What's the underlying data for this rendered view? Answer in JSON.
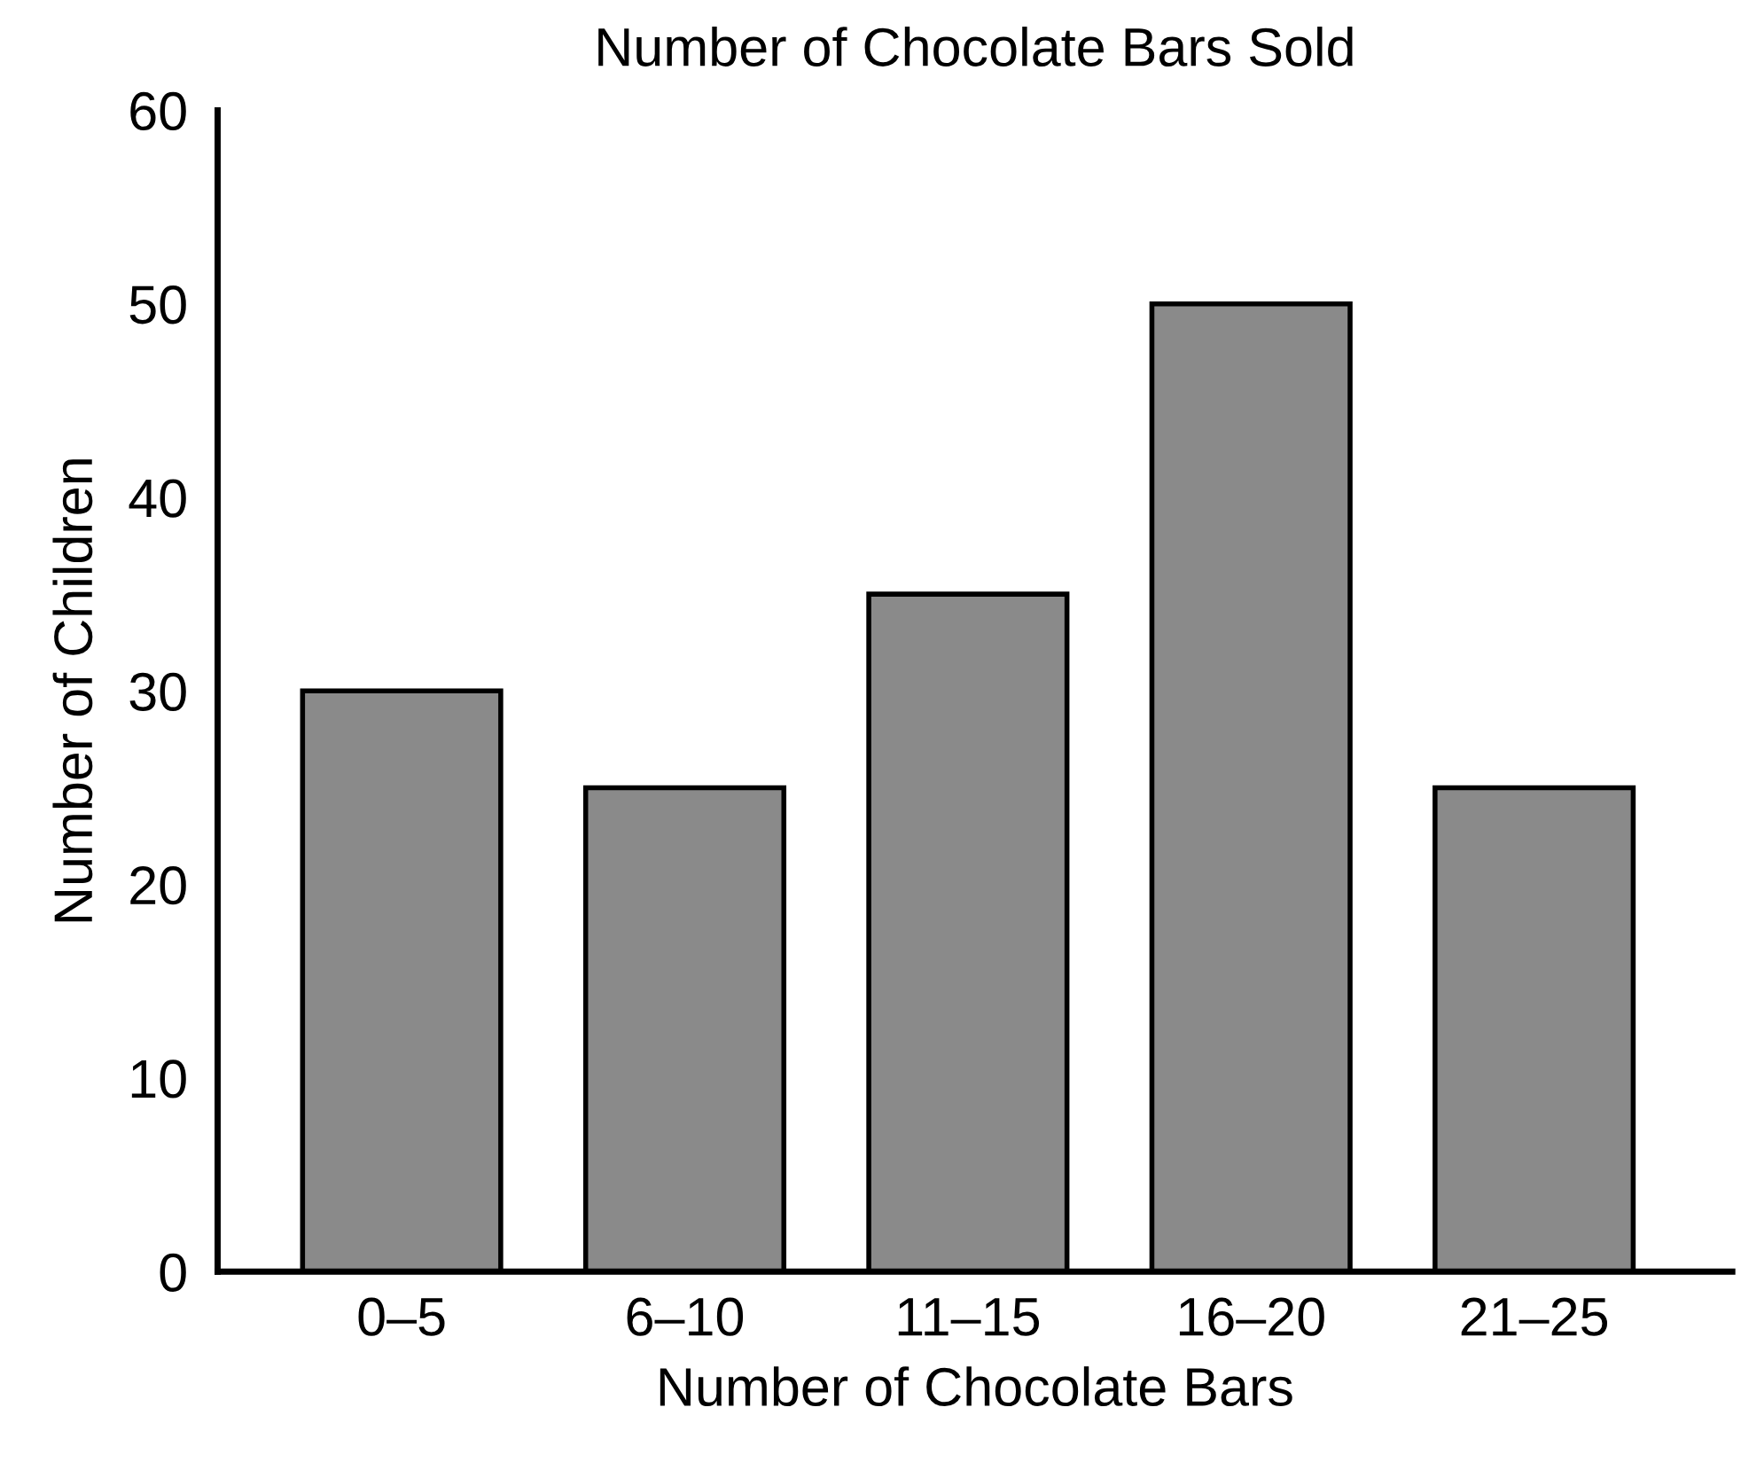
{
  "chart_data": {
    "type": "bar",
    "title": "Number of Chocolate Bars Sold",
    "xlabel": "Number of Chocolate Bars",
    "ylabel": "Number of Children",
    "categories": [
      "0–5",
      "6–10",
      "11–15",
      "16–20",
      "21–25"
    ],
    "values": [
      30,
      25,
      35,
      50,
      25
    ],
    "color": "#8a8a8a",
    "ylim": [
      0,
      60
    ],
    "yticks": [
      0,
      10,
      20,
      30,
      40,
      50,
      60
    ],
    "grid": false
  }
}
